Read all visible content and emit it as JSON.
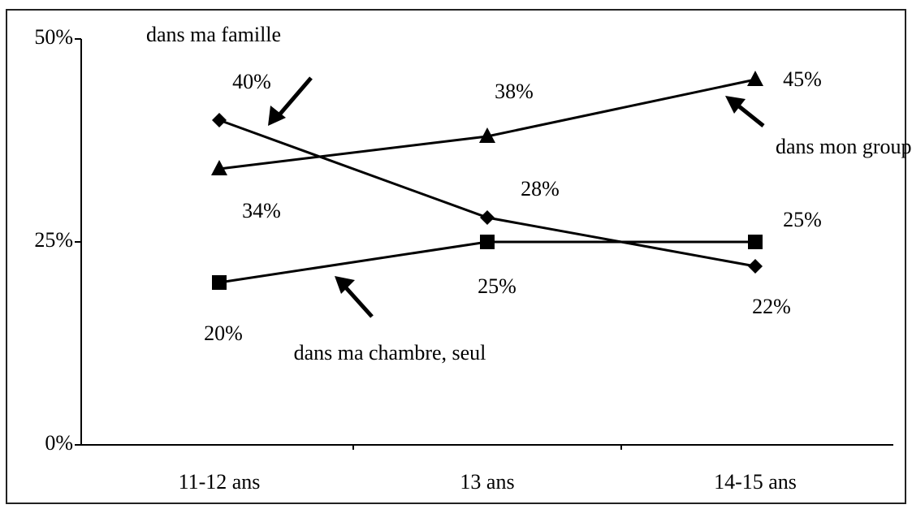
{
  "chart_data": {
    "type": "line",
    "categories": [
      "11-12 ans",
      "13 ans",
      "14-15 ans"
    ],
    "series": [
      {
        "name": "dans ma famille",
        "color": "#000000",
        "marker": "diamond",
        "values": [
          40,
          28,
          22
        ],
        "value_labels": [
          "40%",
          "28%",
          "22%"
        ]
      },
      {
        "name": "dans mon groupe d'amis",
        "color": "#000000",
        "marker": "triangle",
        "values": [
          34,
          38,
          45
        ],
        "value_labels": [
          "34%",
          "38%",
          "45%"
        ]
      },
      {
        "name": "dans ma chambre, seul",
        "color": "#000000",
        "marker": "square",
        "values": [
          20,
          25,
          25
        ],
        "value_labels": [
          "20%",
          "25%",
          "25%"
        ]
      }
    ],
    "ylim": [
      0,
      50
    ],
    "yticks": [
      {
        "value": 0,
        "label": "0%"
      },
      {
        "value": 25,
        "label": "25%"
      },
      {
        "value": 50,
        "label": "50%"
      }
    ]
  }
}
